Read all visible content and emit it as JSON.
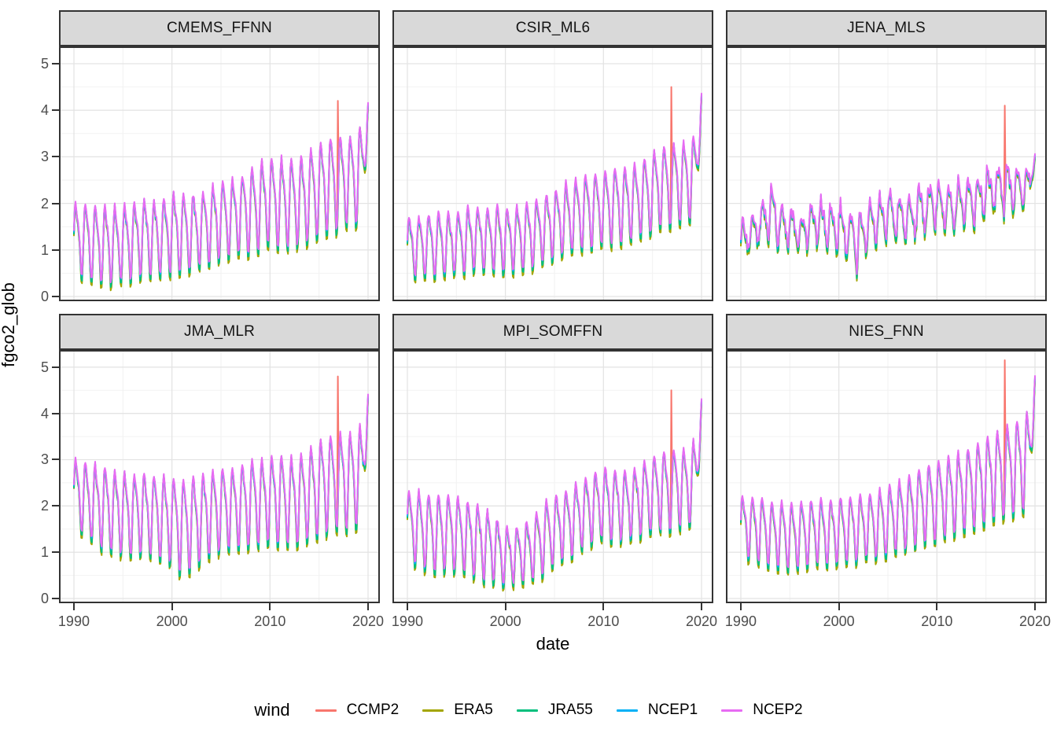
{
  "chart_data": {
    "type": "line",
    "facets": {
      "rows": 2,
      "cols": 3
    },
    "xlabel": "date",
    "ylabel": "fgco2_glob",
    "legend_title": "wind",
    "legend_position": "bottom",
    "grid": "on",
    "x_ticks": [
      1990,
      2000,
      2010,
      2020
    ],
    "x_minor_ticks": [
      1995,
      2005,
      2015
    ],
    "y_ticks": [
      0,
      1,
      2,
      3,
      4,
      5
    ],
    "y_minor_ticks": [
      0.5,
      1.5,
      2.5,
      3.5,
      4.5
    ],
    "x_domain": [
      1988.48,
      2021.2
    ],
    "y_domain": [
      -0.102,
      5.371
    ],
    "time_range": [
      1990,
      2020
    ],
    "points_per_year": 12,
    "ccmp2_spike": {
      "t": 2016.92,
      "month_index": 323
    },
    "series": [
      {
        "name": "CCMP2",
        "color": "#F8766D",
        "offset": -0.02,
        "amp_mul": 1.05
      },
      {
        "name": "ERA5",
        "color": "#A3A500",
        "offset": -0.05,
        "amp_mul": 1.1
      },
      {
        "name": "JRA55",
        "color": "#00BF7D",
        "offset": -0.01,
        "amp_mul": 1.07
      },
      {
        "name": "NCEP1",
        "color": "#00B0F6",
        "offset": 0.03,
        "amp_mul": 1.0
      },
      {
        "name": "NCEP2",
        "color": "#E76BF3",
        "offset": 0.06,
        "amp_mul": 1.02
      }
    ],
    "panels": [
      {
        "title": "CMEMS_FFNN",
        "noise": 0.06,
        "spike_value": 4.2,
        "end_value": 4.1,
        "mids": [
          1.3,
          1.22,
          1.18,
          1.15,
          1.15,
          1.2,
          1.25,
          1.32,
          1.3,
          1.34,
          1.4,
          1.36,
          1.4,
          1.5,
          1.6,
          1.68,
          1.75,
          1.8,
          1.9,
          2.0,
          2.1,
          2.08,
          2.05,
          2.1,
          2.2,
          2.35,
          2.45,
          2.5,
          2.55,
          2.62,
          2.85
        ],
        "amps": [
          0.8,
          0.85,
          0.88,
          0.9,
          0.88,
          0.88,
          0.88,
          0.85,
          0.85,
          0.88,
          0.9,
          0.92,
          0.88,
          0.85,
          0.85,
          0.85,
          0.88,
          0.9,
          0.95,
          1.0,
          1.0,
          1.02,
          1.0,
          1.0,
          1.05,
          1.08,
          1.08,
          1.05,
          1.05,
          1.1,
          1.25
        ]
      },
      {
        "title": "CSIR_ML6",
        "noise": 0.05,
        "spike_value": 4.5,
        "end_value": 4.3,
        "mids": [
          1.1,
          1.1,
          1.12,
          1.15,
          1.15,
          1.2,
          1.25,
          1.3,
          1.26,
          1.3,
          1.22,
          1.26,
          1.3,
          1.4,
          1.5,
          1.6,
          1.7,
          1.76,
          1.85,
          1.9,
          1.95,
          2.0,
          2.02,
          2.06,
          2.15,
          2.3,
          2.4,
          2.45,
          2.5,
          2.58,
          2.75
        ],
        "amps": [
          0.65,
          0.68,
          0.7,
          0.72,
          0.7,
          0.7,
          0.72,
          0.7,
          0.72,
          0.74,
          0.72,
          0.74,
          0.75,
          0.75,
          0.75,
          0.78,
          0.8,
          0.8,
          0.82,
          0.84,
          0.85,
          0.87,
          0.85,
          0.85,
          0.88,
          0.9,
          0.92,
          0.9,
          0.9,
          0.95,
          1.08
        ]
      },
      {
        "title": "JENA_MLS",
        "noise": 0.15,
        "spike_value": 4.1,
        "end_value": 3.0,
        "mids": [
          1.2,
          1.35,
          1.55,
          1.85,
          1.6,
          1.45,
          1.4,
          1.5,
          1.6,
          1.55,
          1.5,
          1.3,
          1.22,
          1.55,
          1.7,
          1.8,
          1.75,
          1.7,
          1.8,
          1.9,
          2.0,
          1.95,
          2.0,
          2.05,
          2.1,
          2.25,
          2.3,
          2.35,
          2.3,
          2.35,
          2.5
        ],
        "amps": [
          0.35,
          0.4,
          0.45,
          0.6,
          0.5,
          0.45,
          0.4,
          0.45,
          0.5,
          0.45,
          0.52,
          0.6,
          0.68,
          0.5,
          0.5,
          0.55,
          0.5,
          0.45,
          0.5,
          0.55,
          0.5,
          0.45,
          0.5,
          0.5,
          0.55,
          0.55,
          0.5,
          0.55,
          0.5,
          0.5,
          0.45
        ]
      },
      {
        "title": "JMA_MLR",
        "noise": 0.05,
        "spike_value": 4.8,
        "end_value": 4.35,
        "mids": [
          2.3,
          2.2,
          2.1,
          2.0,
          1.95,
          1.9,
          1.85,
          1.9,
          1.85,
          1.8,
          1.75,
          1.62,
          1.7,
          1.8,
          1.9,
          1.98,
          2.0,
          2.05,
          2.1,
          2.15,
          2.2,
          2.18,
          2.15,
          2.2,
          2.3,
          2.45,
          2.55,
          2.6,
          2.6,
          2.68,
          2.85
        ],
        "amps": [
          0.8,
          0.85,
          0.9,
          0.95,
          0.95,
          0.95,
          0.95,
          0.92,
          0.95,
          0.95,
          1.0,
          1.1,
          1.05,
          1.0,
          0.95,
          0.95,
          0.95,
          0.95,
          1.0,
          1.0,
          1.0,
          1.05,
          1.0,
          1.0,
          1.05,
          1.1,
          1.1,
          1.1,
          1.1,
          1.15,
          1.28
        ]
      },
      {
        "title": "MPI_SOMFFN",
        "noise": 0.06,
        "spike_value": 4.5,
        "end_value": 4.25,
        "mids": [
          1.6,
          1.55,
          1.5,
          1.45,
          1.5,
          1.45,
          1.35,
          1.28,
          1.2,
          1.1,
          0.95,
          0.95,
          1.0,
          1.15,
          1.35,
          1.5,
          1.65,
          1.75,
          1.9,
          2.0,
          2.1,
          2.08,
          2.05,
          2.1,
          2.2,
          2.3,
          2.4,
          2.4,
          2.45,
          2.52,
          2.65
        ],
        "amps": [
          0.85,
          0.85,
          0.88,
          0.9,
          0.85,
          0.85,
          0.85,
          0.85,
          0.8,
          0.75,
          0.65,
          0.65,
          0.7,
          0.75,
          0.8,
          0.8,
          0.8,
          0.8,
          0.8,
          0.8,
          0.8,
          0.85,
          0.8,
          0.8,
          0.85,
          0.9,
          0.9,
          0.9,
          0.9,
          0.95,
          1.05
        ]
      },
      {
        "title": "NIES_FNN",
        "noise": 0.04,
        "spike_value": 5.15,
        "end_value": 4.75,
        "mids": [
          1.6,
          1.55,
          1.5,
          1.45,
          1.4,
          1.38,
          1.4,
          1.45,
          1.48,
          1.45,
          1.5,
          1.5,
          1.55,
          1.6,
          1.65,
          1.7,
          1.8,
          1.9,
          2.0,
          2.1,
          2.15,
          2.25,
          2.3,
          2.4,
          2.5,
          2.6,
          2.7,
          2.8,
          2.9,
          3.0,
          3.2
        ],
        "amps": [
          0.7,
          0.72,
          0.75,
          0.75,
          0.75,
          0.78,
          0.75,
          0.75,
          0.75,
          0.75,
          0.75,
          0.75,
          0.75,
          0.75,
          0.78,
          0.8,
          0.8,
          0.82,
          0.85,
          0.88,
          0.9,
          0.9,
          0.92,
          0.95,
          0.95,
          1.0,
          1.0,
          1.05,
          1.05,
          1.1,
          1.18
        ]
      }
    ],
    "style_colors": {
      "strip_fill": "#D9D9D9",
      "panel_border": "#333333",
      "grid_major": "#E4E4E4",
      "grid_minor": "#F2F2F2",
      "tick_label": "#4D4D4D"
    }
  }
}
